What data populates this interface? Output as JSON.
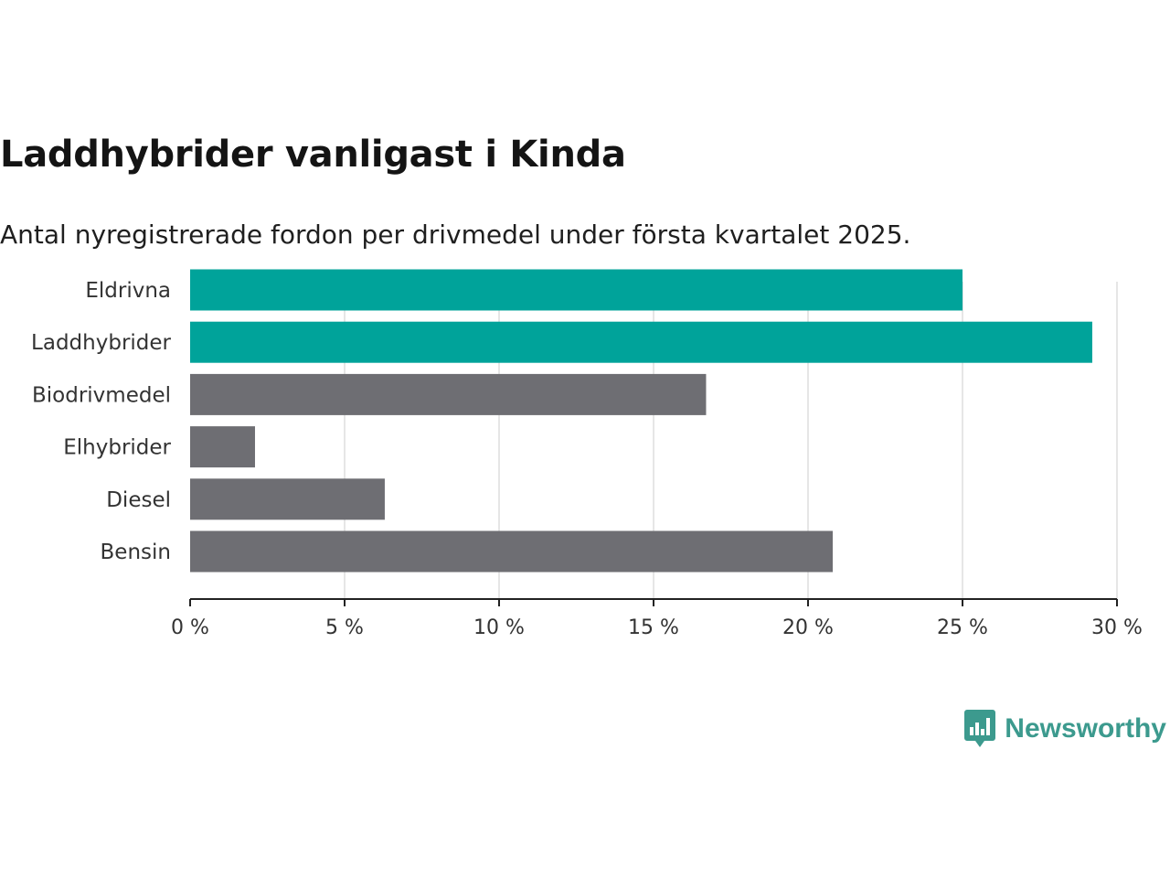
{
  "header": {
    "title": "Laddhybrider vanligast i Kinda",
    "subtitle": "Antal nyregistrerade fordon per drivmedel under första kvartalet 2025."
  },
  "brand": {
    "name": "Newsworthy",
    "color": "#3c9a8e"
  },
  "colors": {
    "highlight": "#00a39a",
    "default": "#6e6e73",
    "grid": "#dedede",
    "axis": "#222222"
  },
  "chart_data": {
    "type": "bar",
    "orientation": "horizontal",
    "title": "Laddhybrider vanligast i Kinda",
    "subtitle": "Antal nyregistrerade fordon per drivmedel under första kvartalet 2025.",
    "categories": [
      "Eldrivna",
      "Laddhybrider",
      "Biodrivmedel",
      "Elhybrider",
      "Diesel",
      "Bensin"
    ],
    "values": [
      25.0,
      29.2,
      16.7,
      2.1,
      6.3,
      20.8
    ],
    "highlighted": [
      true,
      true,
      false,
      false,
      false,
      false
    ],
    "unit": "%",
    "xlim": [
      0,
      30
    ],
    "ticks": [
      0,
      5,
      10,
      15,
      20,
      25,
      30
    ],
    "tick_labels": [
      "0 %",
      "5 %",
      "10 %",
      "15 %",
      "20 %",
      "25 %",
      "30 %"
    ],
    "grid": true,
    "legend": "none"
  }
}
